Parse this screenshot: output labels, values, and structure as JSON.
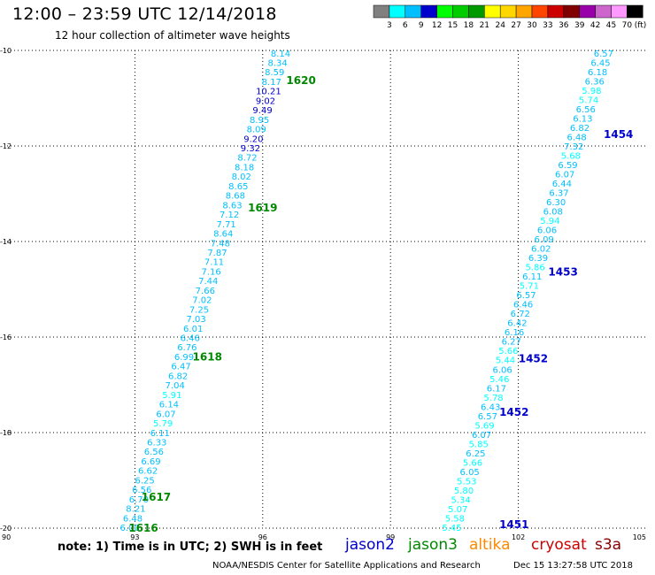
{
  "header": {
    "title": "12:00 – 23:59 UTC 12/14/2018",
    "subtitle": "12 hour collection of altimeter wave heights"
  },
  "colorbar": {
    "unit": "(ft)",
    "segments": [
      {
        "label": "3",
        "color": "#808080"
      },
      {
        "label": "6",
        "color": "#00ffff"
      },
      {
        "label": "9",
        "color": "#00bfff"
      },
      {
        "label": "12",
        "color": "#0000cd"
      },
      {
        "label": "15",
        "color": "#00ff00"
      },
      {
        "label": "18",
        "color": "#00cc00"
      },
      {
        "label": "21",
        "color": "#009900"
      },
      {
        "label": "24",
        "color": "#ffff00"
      },
      {
        "label": "27",
        "color": "#ffd700"
      },
      {
        "label": "30",
        "color": "#ffa500"
      },
      {
        "label": "33",
        "color": "#ff4500"
      },
      {
        "label": "36",
        "color": "#cc0000"
      },
      {
        "label": "39",
        "color": "#800000"
      },
      {
        "label": "42",
        "color": "#9900aa"
      },
      {
        "label": "45",
        "color": "#cc66cc"
      },
      {
        "label": "70",
        "color": "#ff99ff"
      },
      {
        "label": "",
        "color": "#000000"
      }
    ]
  },
  "footer": {
    "note": "note: 1) Time is in UTC; 2) SWH is in feet",
    "credit": "NOAA/NESDIS Center for Satellite Applications and Research",
    "timestamp": "Dec 15 13:27:58 UTC 2018"
  },
  "satellites": [
    {
      "name": "jason2",
      "color": "#0000cc"
    },
    {
      "name": "jason3",
      "color": "#008800"
    },
    {
      "name": "altika",
      "color": "#ff8800"
    },
    {
      "name": "cryosat",
      "color": "#cc0000"
    },
    {
      "name": "s3a",
      "color": "#880000"
    }
  ],
  "chart_data": {
    "type": "scatter",
    "xlim": [
      90,
      105
    ],
    "ylim": [
      -20,
      -10
    ],
    "x_ticks": [
      "90",
      "93",
      "96",
      "99",
      "102",
      "105"
    ],
    "y_ticks": [
      "-10",
      "-12",
      "-14",
      "-16",
      "-18",
      "-20"
    ],
    "grid": true,
    "tracks": [
      {
        "name": "left-track",
        "start": [
          92.88,
          -20.0
        ],
        "end": [
          96.42,
          -10.07
        ],
        "values": [
          "6.00",
          "6.48",
          "8.21",
          "6.70",
          "6.56",
          "6.25",
          "6.62",
          "6.69",
          "6.56",
          "6.33",
          "6.11",
          "5.79",
          "6.07",
          "6.14",
          "5.91",
          "7.04",
          "6.82",
          "6.47",
          "6.99",
          "6.76",
          "6.46",
          "6.01",
          "7.03",
          "7.25",
          "7.02",
          "7.66",
          "7.44",
          "7.16",
          "7.11",
          "7.87",
          "7.48",
          "8.64",
          "7.71",
          "7.12",
          "8.63",
          "8.68",
          "8.65",
          "8.02",
          "8.18",
          "8.72",
          "9.32",
          "9.20",
          "8.09",
          "8.95",
          "9.49",
          "9.02",
          "10.21",
          "8.17",
          "8.59",
          "8.34",
          "8.14"
        ]
      },
      {
        "name": "right-track",
        "start": [
          100.44,
          -20.0
        ],
        "end": [
          104.0,
          -10.07
        ],
        "values": [
          "5.45",
          "5.58",
          "5.07",
          "5.34",
          "5.80",
          "5.53",
          "6.05",
          "5.66",
          "6.25",
          "5.85",
          "6.07",
          "5.69",
          "6.57",
          "6.43",
          "5.78",
          "6.17",
          "5.46",
          "6.06",
          "5.44",
          "5.66",
          "6.27",
          "6.16",
          "6.42",
          "6.72",
          "6.46",
          "6.57",
          "5.71",
          "6.11",
          "5.86",
          "6.39",
          "6.02",
          "6.09",
          "6.06",
          "5.94",
          "6.08",
          "6.30",
          "6.37",
          "6.44",
          "6.07",
          "6.59",
          "5.68",
          "7.32",
          "6.48",
          "6.82",
          "6.13",
          "6.56",
          "5.74",
          "5.98",
          "6.36",
          "6.18",
          "6.45",
          "6.57"
        ]
      }
    ],
    "time_labels": [
      {
        "text": "1616",
        "x": 93.2,
        "y": -20.0,
        "color": "#008800"
      },
      {
        "text": "1617",
        "x": 93.5,
        "y": -19.35,
        "color": "#008800"
      },
      {
        "text": "1618",
        "x": 94.7,
        "y": -16.42,
        "color": "#008800"
      },
      {
        "text": "1619",
        "x": 96.0,
        "y": -13.3,
        "color": "#008800"
      },
      {
        "text": "1620",
        "x": 96.9,
        "y": -10.63,
        "color": "#008800"
      },
      {
        "text": "1451",
        "x": 101.9,
        "y": -19.93,
        "color": "#0000cc"
      },
      {
        "text": "1452",
        "x": 101.9,
        "y": -17.57,
        "color": "#0000cc"
      },
      {
        "text": "1452",
        "x": 102.35,
        "y": -16.45,
        "color": "#0000cc"
      },
      {
        "text": "1453",
        "x": 103.05,
        "y": -14.64,
        "color": "#0000cc"
      },
      {
        "text": "1454",
        "x": 104.35,
        "y": -11.76,
        "color": "#0000cc"
      }
    ]
  }
}
